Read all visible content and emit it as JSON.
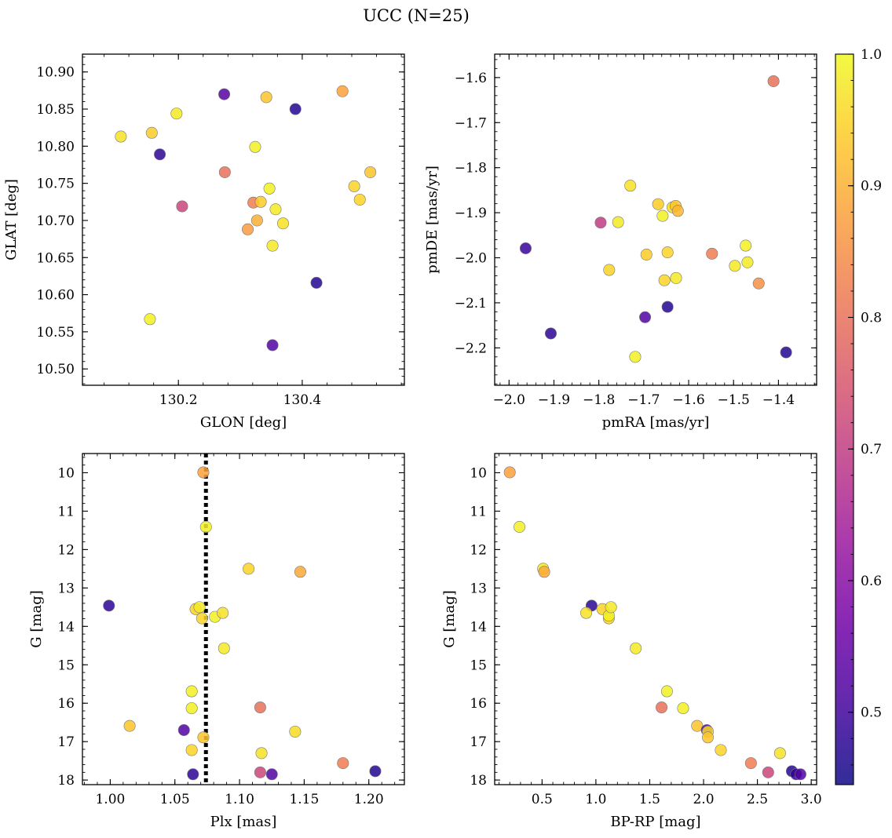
{
  "figure": {
    "suptitle": "UCC (N=25)"
  },
  "chart_data": [
    {
      "type": "scatter",
      "panel": "top-left",
      "xlabel": "GLON [deg]",
      "ylabel": "GLAT [deg]",
      "xlim": [
        130.045,
        130.565
      ],
      "ylim": [
        10.478,
        10.924
      ],
      "x_ticks": [
        130.2,
        130.4
      ],
      "x_tick_labels": [
        "130.2",
        "130.4"
      ],
      "y_ticks": [
        10.5,
        10.55,
        10.6,
        10.65,
        10.7,
        10.75,
        10.8,
        10.85,
        10.9
      ],
      "y_tick_labels": [
        "10.50",
        "10.55",
        "10.60",
        "10.65",
        "10.70",
        "10.75",
        "10.80",
        "10.85",
        "10.90"
      ],
      "points": [
        {
          "x": 130.107,
          "y": 10.813,
          "c": 0.97
        },
        {
          "x": 130.157,
          "y": 10.818,
          "c": 0.94
        },
        {
          "x": 130.197,
          "y": 10.844,
          "c": 0.98
        },
        {
          "x": 130.17,
          "y": 10.789,
          "c": 0.48
        },
        {
          "x": 130.274,
          "y": 10.87,
          "c": 0.53
        },
        {
          "x": 130.342,
          "y": 10.866,
          "c": 0.93
        },
        {
          "x": 130.389,
          "y": 10.85,
          "c": 0.47
        },
        {
          "x": 130.465,
          "y": 10.874,
          "c": 0.88
        },
        {
          "x": 130.275,
          "y": 10.765,
          "c": 0.8
        },
        {
          "x": 130.324,
          "y": 10.799,
          "c": 0.99
        },
        {
          "x": 130.206,
          "y": 10.719,
          "c": 0.72
        },
        {
          "x": 130.321,
          "y": 10.724,
          "c": 0.82
        },
        {
          "x": 130.333,
          "y": 10.725,
          "c": 0.94
        },
        {
          "x": 130.347,
          "y": 10.743,
          "c": 0.99
        },
        {
          "x": 130.357,
          "y": 10.715,
          "c": 0.98
        },
        {
          "x": 130.327,
          "y": 10.7,
          "c": 0.9
        },
        {
          "x": 130.312,
          "y": 10.688,
          "c": 0.87
        },
        {
          "x": 130.369,
          "y": 10.696,
          "c": 0.97
        },
        {
          "x": 130.352,
          "y": 10.666,
          "c": 0.98
        },
        {
          "x": 130.484,
          "y": 10.746,
          "c": 0.95
        },
        {
          "x": 130.51,
          "y": 10.765,
          "c": 0.93
        },
        {
          "x": 130.493,
          "y": 10.728,
          "c": 0.95
        },
        {
          "x": 130.423,
          "y": 10.616,
          "c": 0.47
        },
        {
          "x": 130.154,
          "y": 10.567,
          "c": 0.99
        },
        {
          "x": 130.352,
          "y": 10.532,
          "c": 0.52
        }
      ]
    },
    {
      "type": "scatter",
      "panel": "top-right",
      "xlabel": "pmRA [mas/yr]",
      "ylabel": "pmDE [mas/yr]",
      "xlim": [
        -2.032,
        -1.315
      ],
      "ylim": [
        -2.283,
        -1.548
      ],
      "x_ticks": [
        -2.0,
        -1.9,
        -1.8,
        -1.7,
        -1.6,
        -1.5,
        -1.4
      ],
      "x_tick_labels": [
        "−2.0",
        "−1.9",
        "−1.8",
        "−1.7",
        "−1.6",
        "−1.5",
        "−1.4"
      ],
      "y_ticks": [
        -2.2,
        -2.1,
        -2.0,
        -1.9,
        -1.8,
        -1.7,
        -1.6
      ],
      "y_tick_labels": [
        "−2.2",
        "−2.1",
        "−2.0",
        "−1.9",
        "−1.8",
        "−1.7",
        "−1.6"
      ],
      "points": [
        {
          "x": -1.411,
          "y": -1.608,
          "c": 0.8
        },
        {
          "x": -1.73,
          "y": -1.84,
          "c": 0.97
        },
        {
          "x": -1.668,
          "y": -1.881,
          "c": 0.94
        },
        {
          "x": -1.636,
          "y": -1.888,
          "c": 0.96
        },
        {
          "x": -1.629,
          "y": -1.885,
          "c": 0.93
        },
        {
          "x": -1.624,
          "y": -1.896,
          "c": 0.91
        },
        {
          "x": -1.658,
          "y": -1.907,
          "c": 0.99
        },
        {
          "x": -1.757,
          "y": -1.921,
          "c": 0.98
        },
        {
          "x": -1.796,
          "y": -1.922,
          "c": 0.7
        },
        {
          "x": -1.963,
          "y": -1.979,
          "c": 0.49
        },
        {
          "x": -1.694,
          "y": -1.993,
          "c": 0.94
        },
        {
          "x": -1.647,
          "y": -1.988,
          "c": 0.95
        },
        {
          "x": -1.548,
          "y": -1.991,
          "c": 0.82
        },
        {
          "x": -1.473,
          "y": -1.973,
          "c": 0.99
        },
        {
          "x": -1.497,
          "y": -2.018,
          "c": 0.98
        },
        {
          "x": -1.469,
          "y": -2.01,
          "c": 0.98
        },
        {
          "x": -1.777,
          "y": -2.027,
          "c": 0.95
        },
        {
          "x": -1.654,
          "y": -2.05,
          "c": 0.95
        },
        {
          "x": -1.628,
          "y": -2.045,
          "c": 0.98
        },
        {
          "x": -1.444,
          "y": -2.057,
          "c": 0.85
        },
        {
          "x": -1.647,
          "y": -2.109,
          "c": 0.47
        },
        {
          "x": -1.697,
          "y": -2.132,
          "c": 0.52
        },
        {
          "x": -1.907,
          "y": -2.168,
          "c": 0.48
        },
        {
          "x": -1.383,
          "y": -2.21,
          "c": 0.47
        },
        {
          "x": -1.719,
          "y": -2.22,
          "c": 0.99
        }
      ]
    },
    {
      "type": "scatter",
      "panel": "bottom-left",
      "xlabel": "Plx [mas]",
      "ylabel": "G [mag]",
      "xlim": [
        0.9785,
        1.2275
      ],
      "ylim": [
        18.12,
        9.5
      ],
      "y_inverted": true,
      "x_ticks": [
        1.0,
        1.05,
        1.1,
        1.15,
        1.2
      ],
      "x_tick_labels": [
        "1.00",
        "1.05",
        "1.10",
        "1.15",
        "1.20"
      ],
      "y_ticks": [
        10,
        11,
        12,
        13,
        14,
        15,
        16,
        17,
        18
      ],
      "y_tick_labels": [
        "10",
        "11",
        "12",
        "13",
        "14",
        "15",
        "16",
        "17",
        "18"
      ],
      "vline": {
        "x": 1.074,
        "color": "#000000",
        "style": "dotted"
      },
      "points": [
        {
          "x": 1.072,
          "y": 9.99,
          "c": 0.88
        },
        {
          "x": 1.074,
          "y": 11.41,
          "c": 0.99
        },
        {
          "x": 1.107,
          "y": 12.5,
          "c": 0.95
        },
        {
          "x": 1.147,
          "y": 12.58,
          "c": 0.89
        },
        {
          "x": 0.999,
          "y": 13.46,
          "c": 0.48
        },
        {
          "x": 1.066,
          "y": 13.55,
          "c": 0.95
        },
        {
          "x": 1.069,
          "y": 13.5,
          "c": 0.98
        },
        {
          "x": 1.071,
          "y": 13.79,
          "c": 0.95
        },
        {
          "x": 1.081,
          "y": 13.75,
          "c": 0.99
        },
        {
          "x": 1.087,
          "y": 13.65,
          "c": 0.97
        },
        {
          "x": 1.088,
          "y": 14.57,
          "c": 0.98
        },
        {
          "x": 1.063,
          "y": 15.69,
          "c": 0.99
        },
        {
          "x": 1.063,
          "y": 16.13,
          "c": 0.99
        },
        {
          "x": 1.116,
          "y": 16.11,
          "c": 0.8
        },
        {
          "x": 1.015,
          "y": 16.59,
          "c": 0.93
        },
        {
          "x": 1.057,
          "y": 16.7,
          "c": 0.52
        },
        {
          "x": 1.072,
          "y": 16.89,
          "c": 0.93
        },
        {
          "x": 1.143,
          "y": 16.74,
          "c": 0.96
        },
        {
          "x": 1.063,
          "y": 17.22,
          "c": 0.95
        },
        {
          "x": 1.117,
          "y": 17.3,
          "c": 0.97
        },
        {
          "x": 1.18,
          "y": 17.56,
          "c": 0.82
        },
        {
          "x": 1.116,
          "y": 17.8,
          "c": 0.72
        },
        {
          "x": 1.205,
          "y": 17.77,
          "c": 0.47
        },
        {
          "x": 1.064,
          "y": 17.85,
          "c": 0.48
        },
        {
          "x": 1.125,
          "y": 17.85,
          "c": 0.52
        }
      ]
    },
    {
      "type": "scatter",
      "panel": "bottom-right",
      "xlabel": "BP-RP [mag]",
      "ylabel": "G [mag]",
      "xlim": [
        0.06,
        3.05
      ],
      "ylim": [
        18.12,
        9.5
      ],
      "y_inverted": true,
      "x_ticks": [
        0.5,
        1.0,
        1.5,
        2.0,
        2.5,
        3.0
      ],
      "x_tick_labels": [
        "0.5",
        "1.0",
        "1.5",
        "2.0",
        "2.5",
        "3.0"
      ],
      "y_ticks": [
        10,
        11,
        12,
        13,
        14,
        15,
        16,
        17,
        18
      ],
      "y_tick_labels": [
        "10",
        "11",
        "12",
        "13",
        "14",
        "15",
        "16",
        "17",
        "18"
      ],
      "points": [
        {
          "x": 0.2,
          "y": 9.99,
          "c": 0.88
        },
        {
          "x": 0.29,
          "y": 11.41,
          "c": 0.99
        },
        {
          "x": 0.51,
          "y": 12.5,
          "c": 0.98
        },
        {
          "x": 0.52,
          "y": 12.58,
          "c": 0.89
        },
        {
          "x": 0.96,
          "y": 13.46,
          "c": 0.48
        },
        {
          "x": 0.91,
          "y": 13.65,
          "c": 0.97
        },
        {
          "x": 1.06,
          "y": 13.55,
          "c": 0.95
        },
        {
          "x": 1.12,
          "y": 13.79,
          "c": 0.95
        },
        {
          "x": 1.12,
          "y": 13.72,
          "c": 0.99
        },
        {
          "x": 1.14,
          "y": 13.5,
          "c": 0.98
        },
        {
          "x": 1.37,
          "y": 14.57,
          "c": 0.98
        },
        {
          "x": 1.66,
          "y": 15.69,
          "c": 0.99
        },
        {
          "x": 1.61,
          "y": 16.11,
          "c": 0.8
        },
        {
          "x": 1.81,
          "y": 16.13,
          "c": 0.99
        },
        {
          "x": 1.94,
          "y": 16.59,
          "c": 0.93
        },
        {
          "x": 2.03,
          "y": 16.7,
          "c": 0.52
        },
        {
          "x": 2.04,
          "y": 16.74,
          "c": 0.96
        },
        {
          "x": 2.04,
          "y": 16.89,
          "c": 0.93
        },
        {
          "x": 2.16,
          "y": 17.22,
          "c": 0.95
        },
        {
          "x": 2.44,
          "y": 17.56,
          "c": 0.82
        },
        {
          "x": 2.6,
          "y": 17.8,
          "c": 0.72
        },
        {
          "x": 2.71,
          "y": 17.3,
          "c": 0.97
        },
        {
          "x": 2.82,
          "y": 17.77,
          "c": 0.47
        },
        {
          "x": 2.86,
          "y": 17.85,
          "c": 0.48
        },
        {
          "x": 2.9,
          "y": 17.85,
          "c": 0.52
        }
      ]
    }
  ],
  "colorbar": {
    "colormap": "plasma",
    "range": [
      0.445,
      1.0
    ],
    "ticks": [
      0.5,
      0.6,
      0.7,
      0.8,
      0.9,
      1.0
    ],
    "tick_labels": [
      "0.5",
      "0.6",
      "0.7",
      "0.8",
      "0.9",
      "1.0"
    ]
  },
  "style": {
    "marker_alpha": 0.85,
    "marker_edge_color": "#777777",
    "plasma_stops": [
      "#0d0887",
      "#46039f",
      "#7201a8",
      "#9c179e",
      "#bd3786",
      "#d8576b",
      "#ed7953",
      "#fb9f3a",
      "#fdca26",
      "#f0f921"
    ]
  }
}
